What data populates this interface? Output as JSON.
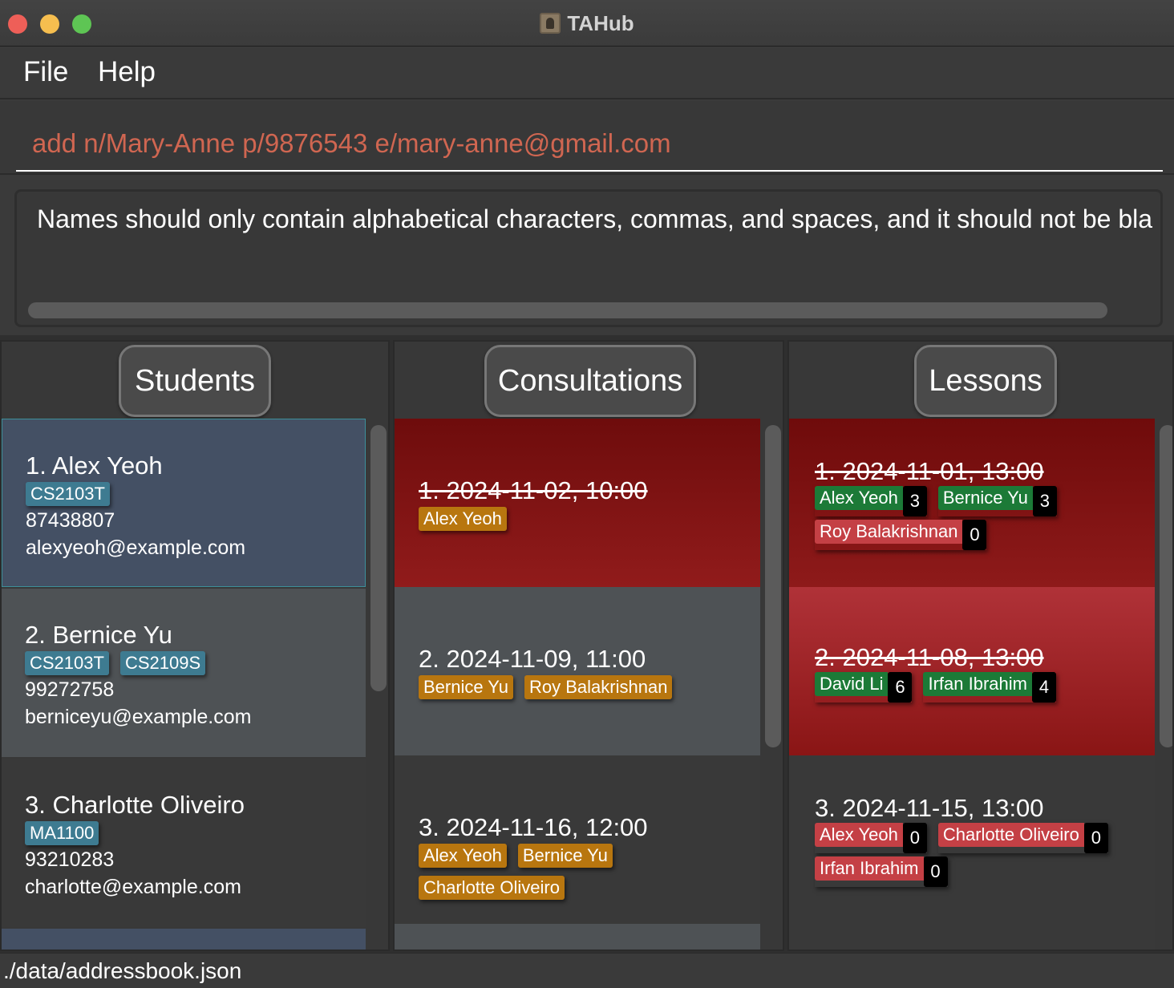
{
  "window": {
    "title": "TAHub"
  },
  "menu": {
    "file": "File",
    "help": "Help"
  },
  "command": {
    "value": "add n/Mary-Anne p/9876543 e/mary-anne@gmail.com"
  },
  "result": {
    "text": "Names should only contain alphabetical characters, commas, and spaces, and it should not be bla"
  },
  "panels": {
    "students": {
      "title": "Students"
    },
    "consultations": {
      "title": "Consultations"
    },
    "lessons": {
      "title": "Lessons"
    }
  },
  "students": [
    {
      "name": "1. Alex Yeoh",
      "modules": [
        "CS2103T"
      ],
      "phone": "87438807",
      "email": "alexyeoh@example.com",
      "selected": true
    },
    {
      "name": "2. Bernice Yu",
      "modules": [
        "CS2103T",
        "CS2109S"
      ],
      "phone": "99272758",
      "email": "berniceyu@example.com"
    },
    {
      "name": "3. Charlotte Oliveiro",
      "modules": [
        "MA1100"
      ],
      "phone": "93210283",
      "email": "charlotte@example.com"
    }
  ],
  "consultations": [
    {
      "title": "1. 2024-11-02, 10:00",
      "past": true,
      "students": [
        "Alex Yeoh"
      ]
    },
    {
      "title": "2. 2024-11-09, 11:00",
      "past": false,
      "students": [
        "Bernice Yu",
        "Roy Balakrishnan"
      ]
    },
    {
      "title": "3. 2024-11-16, 12:00",
      "past": false,
      "students": [
        "Alex Yeoh",
        "Bernice Yu",
        "Charlotte Oliveiro"
      ]
    }
  ],
  "lessons": [
    {
      "title": "1. 2024-11-01, 13:00",
      "past": true,
      "students": [
        {
          "name": "Alex Yeoh",
          "present": true,
          "count": "3"
        },
        {
          "name": "Bernice Yu",
          "present": true,
          "count": "3"
        },
        {
          "name": "Roy Balakrishnan",
          "present": false,
          "count": "0"
        }
      ]
    },
    {
      "title": "2. 2024-11-08, 13:00",
      "past": true,
      "students": [
        {
          "name": "David Li",
          "present": true,
          "count": "6"
        },
        {
          "name": "Irfan Ibrahim",
          "present": true,
          "count": "4"
        }
      ]
    },
    {
      "title": "3. 2024-11-15, 13:00",
      "past": false,
      "students": [
        {
          "name": "Alex Yeoh",
          "present": false,
          "count": "0"
        },
        {
          "name": "Charlotte Oliveiro",
          "present": false,
          "count": "0"
        },
        {
          "name": "Irfan Ibrahim",
          "present": false,
          "count": "0"
        }
      ]
    }
  ],
  "status": {
    "path": "./data/addressbook.json"
  },
  "colors": {
    "command_text": "#d06651",
    "module_tag": "#3e7b91",
    "consult_student_tag": "#b8760f",
    "present_tag": "#1c7a37",
    "absent_tag": "#c44045",
    "past_red_dark": "#7a1010",
    "past_red_light": "#b23539"
  }
}
